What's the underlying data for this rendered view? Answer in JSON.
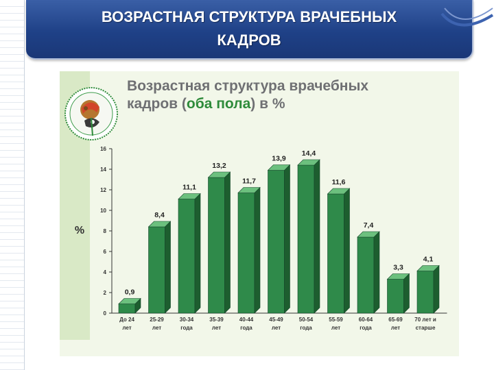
{
  "slide": {
    "title_line1": "ВОЗРАСТНАЯ СТРУКТУРА ВРАЧЕБНЫХ",
    "title_line2": "КАДРОВ",
    "header_color": "#1f4187"
  },
  "chart_title": {
    "line1": "Возрастная структура врачебных",
    "line2_before": "кадров (",
    "line2_highlight": "оба пола",
    "line2_after": ") в %"
  },
  "colors": {
    "bar_front": "#2f8a4a",
    "bar_side": "#1d5e2f",
    "bar_top": "#6cc07e",
    "title_highlight": "#2e8b3a",
    "panel": "#f2f7e9"
  },
  "chart_data": {
    "type": "bar",
    "title": "Возрастная структура врачебных кадров (оба пола) в %",
    "ylabel": "%",
    "ylim": [
      0,
      16
    ],
    "yticks": [
      0,
      2,
      4,
      6,
      8,
      10,
      12,
      14,
      16
    ],
    "categories": [
      [
        "До 24",
        "лет"
      ],
      [
        "25-29",
        "лет"
      ],
      [
        "30-34",
        "года"
      ],
      [
        "35-39",
        "лет"
      ],
      [
        "40-44",
        "года"
      ],
      [
        "45-49",
        "лет"
      ],
      [
        "50-54",
        "года"
      ],
      [
        "55-59",
        "лет"
      ],
      [
        "60-64",
        "года"
      ],
      [
        "65-69",
        "лет"
      ],
      [
        "70 лет и",
        "старше"
      ]
    ],
    "values": [
      0.9,
      8.4,
      11.1,
      13.2,
      11.7,
      13.9,
      14.4,
      11.6,
      7.4,
      3.3,
      4.1
    ],
    "value_labels": [
      "0,9",
      "8,4",
      "11,1",
      "13,2",
      "11,7",
      "13,9",
      "14,4",
      "11,6",
      "7,4",
      "3,3",
      "4,1"
    ],
    "grid": false,
    "legend": "none"
  }
}
